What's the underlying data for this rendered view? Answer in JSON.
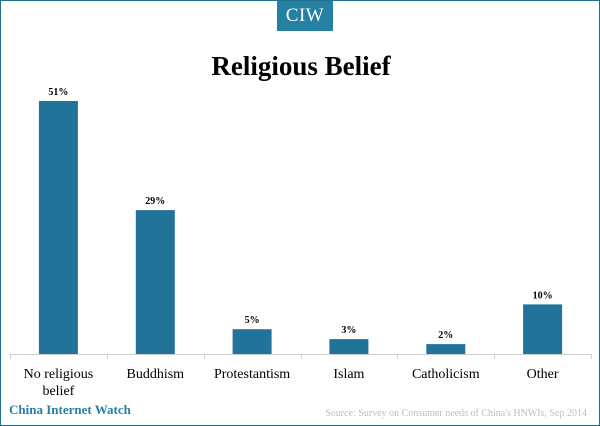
{
  "header": {
    "logo_text": "CIW"
  },
  "colors": {
    "accent": "#2581a3",
    "bar": "#22739a",
    "axis": "#cfcfcf"
  },
  "chart_data": {
    "type": "bar",
    "title": "Religious Belief",
    "xlabel": "",
    "ylabel": "",
    "categories": [
      "No religious belief",
      "Buddhism",
      "Protestantism",
      "Islam",
      "Catholicism",
      "Other"
    ],
    "category_lines": [
      [
        "No religious",
        "belief"
      ],
      [
        "Buddhism"
      ],
      [
        "Protestantism"
      ],
      [
        "Islam"
      ],
      [
        "Catholicism"
      ],
      [
        "Other"
      ]
    ],
    "values": [
      51,
      29,
      5,
      3,
      2,
      10
    ],
    "value_labels": [
      "51%",
      "29%",
      "5%",
      "3%",
      "2%",
      "10%"
    ],
    "ylim": [
      0,
      51
    ],
    "grid": false,
    "legend": "none"
  },
  "footer": {
    "brand": "China Internet Watch",
    "source": "Source: Survey on Consumer needs of China's HNWIs, Sep 2014"
  }
}
